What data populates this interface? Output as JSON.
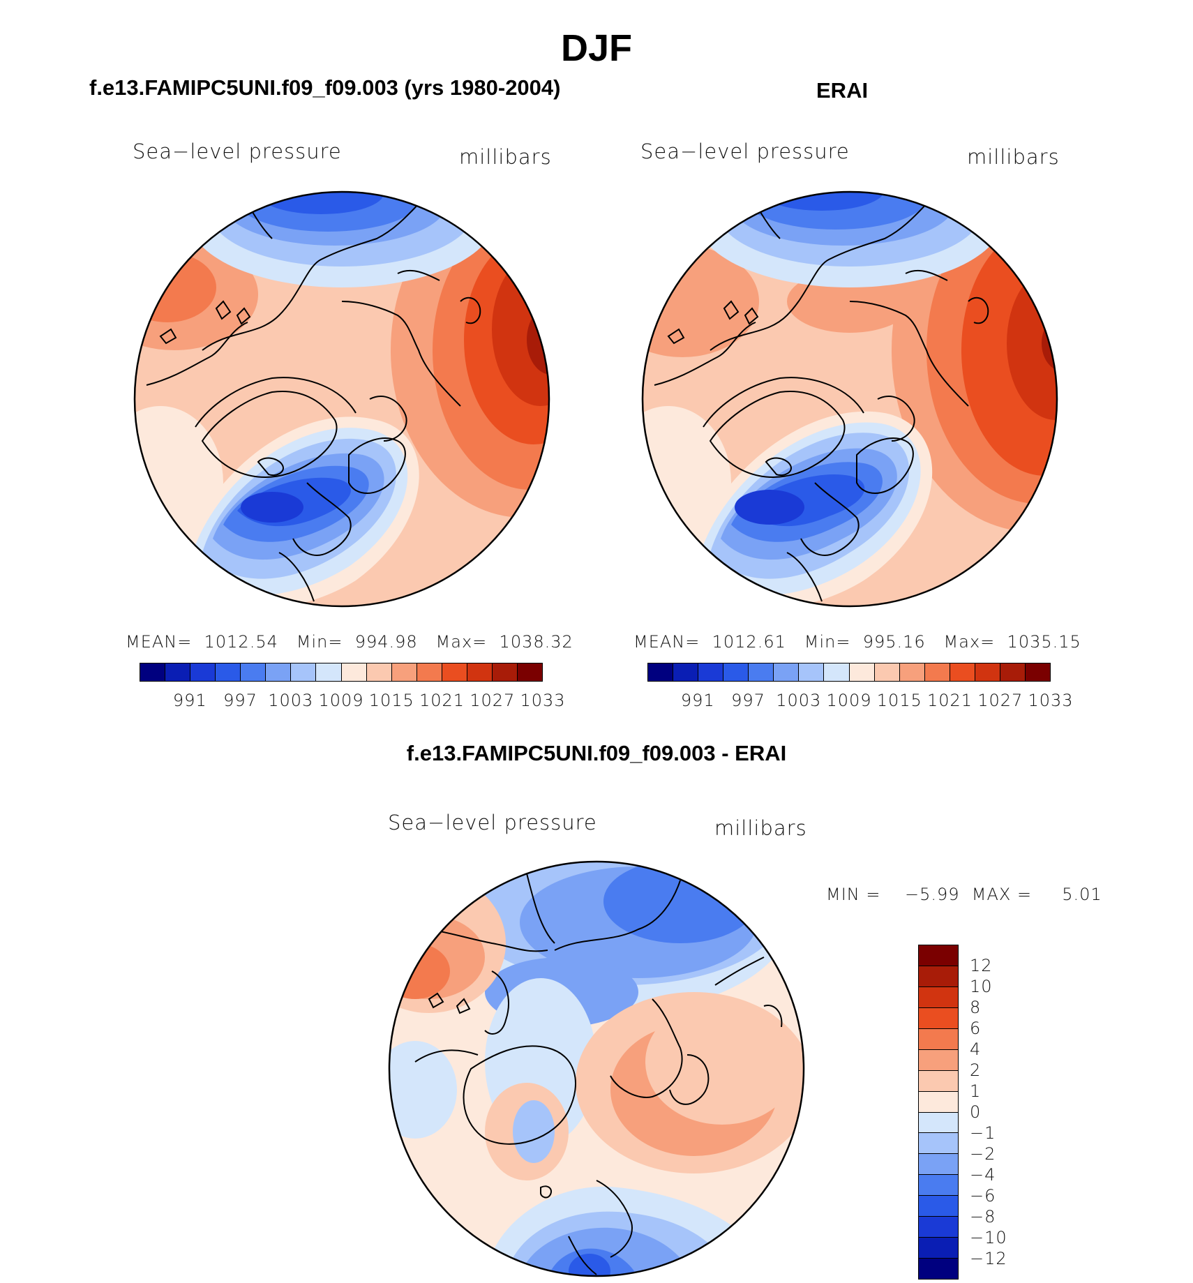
{
  "figure": {
    "title": "DJF",
    "variable": "Sea−level pressure",
    "units": "millibars"
  },
  "colors": {
    "abs_palette": [
      "#00007f",
      "#0a1eb4",
      "#1a3ad6",
      "#2a5ae8",
      "#4a7cf0",
      "#7aa2f5",
      "#a6c4fa",
      "#d4e6fb",
      "#fde9dc",
      "#fbc9b0",
      "#f7a07c",
      "#f37a4e",
      "#ea4e20",
      "#d13410",
      "#a81c08",
      "#7a0000"
    ],
    "diff_palette": [
      "#7a0000",
      "#a81c08",
      "#d13410",
      "#ea4e20",
      "#f37a4e",
      "#f7a07c",
      "#fbc9b0",
      "#fde9dc",
      "#d4e6fb",
      "#a6c4fa",
      "#7aa2f5",
      "#4a7cf0",
      "#2a5ae8",
      "#1a3ad6",
      "#0a1eb4",
      "#00007f"
    ]
  },
  "panels": [
    {
      "id": "model",
      "heading": "f.e13.FAMIPC5UNI.f09_f09.003 (yrs 1980-2004)",
      "stats": "MEAN=  1012.54   Min=  994.98   Max=  1038.32",
      "colorbar_ticks": [
        "991",
        "997",
        "1003",
        "1009",
        "1015",
        "1021",
        "1027",
        "1033"
      ]
    },
    {
      "id": "obs",
      "heading": "ERAI",
      "stats": "MEAN=  1012.61   Min=  995.16   Max=  1035.15",
      "colorbar_ticks": [
        "991",
        "997",
        "1003",
        "1009",
        "1015",
        "1021",
        "1027",
        "1033"
      ]
    }
  ],
  "difference": {
    "heading": "f.e13.FAMIPC5UNI.f09_f09.003 - ERAI",
    "stats": "MIN =    −5.99  MAX =     5.01",
    "colorbar_ticks": [
      "12",
      "10",
      "8",
      "6",
      "4",
      "2",
      "1",
      "0",
      "−1",
      "−2",
      "−4",
      "−6",
      "−8",
      "−10",
      "−12"
    ]
  }
}
